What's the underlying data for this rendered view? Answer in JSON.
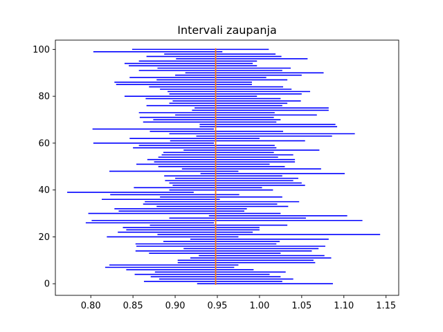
{
  "chart_data": {
    "type": "errorbar-horizontal",
    "title": "Intervali zaupanja",
    "xlabel": "",
    "ylabel": "",
    "xlim": [
      0.758,
      1.165
    ],
    "ylim": [
      -4.95,
      103.95
    ],
    "xticks": [
      0.8,
      0.85,
      0.9,
      0.95,
      1.0,
      1.05,
      1.1,
      1.15
    ],
    "xtick_labels": [
      "0.80",
      "0.85",
      "0.90",
      "0.95",
      "1.00",
      "1.05",
      "1.10",
      "1.15"
    ],
    "yticks": [
      0,
      20,
      40,
      60,
      80,
      100
    ],
    "ytick_labels": [
      "0",
      "20",
      "40",
      "60",
      "80",
      "100"
    ],
    "reference_line": {
      "x": 0.948,
      "color": "#ff7f0e"
    },
    "interval_color": "#0000ff",
    "grid": false,
    "legend": "none",
    "intervals": [
      [
        0.926,
        1.087
      ],
      [
        0.863,
        1.027
      ],
      [
        0.881,
        1.04
      ],
      [
        0.871,
        1.025
      ],
      [
        0.852,
        1.012
      ],
      [
        0.876,
        1.031
      ],
      [
        0.842,
        0.993
      ],
      [
        0.817,
        0.97
      ],
      [
        0.822,
        0.975
      ],
      [
        0.903,
        1.066
      ],
      [
        0.903,
        1.064
      ],
      [
        0.918,
        1.085
      ],
      [
        0.928,
        1.077
      ],
      [
        0.869,
        1.025
      ],
      [
        0.853,
        1.062
      ],
      [
        0.91,
        1.07
      ],
      [
        0.854,
        1.078
      ],
      [
        0.853,
        1.02
      ],
      [
        0.886,
        1.024
      ],
      [
        0.918,
        1.082
      ],
      [
        0.819,
        0.975
      ],
      [
        0.879,
        1.143
      ],
      [
        0.832,
        0.992
      ],
      [
        0.842,
        1.0
      ],
      [
        0.838,
        1.0
      ],
      [
        0.87,
        1.033
      ],
      [
        0.794,
        0.946
      ],
      [
        0.801,
        1.122
      ],
      [
        0.893,
        1.055
      ],
      [
        0.94,
        1.104
      ],
      [
        0.797,
        1.025
      ],
      [
        0.833,
        0.982
      ],
      [
        0.828,
        0.985
      ],
      [
        0.878,
        1.034
      ],
      [
        0.862,
        1.021
      ],
      [
        0.864,
        1.047
      ],
      [
        0.813,
        0.953
      ],
      [
        0.882,
        1.027
      ],
      [
        0.823,
        0.976
      ],
      [
        0.772,
        0.922
      ],
      [
        0.893,
        1.016
      ],
      [
        0.851,
        1.003
      ],
      [
        0.897,
        1.054
      ],
      [
        0.893,
        1.05
      ],
      [
        0.888,
        1.04
      ],
      [
        0.9,
        1.046
      ],
      [
        0.887,
        1.027
      ],
      [
        0.93,
        1.101
      ],
      [
        0.822,
        0.975
      ],
      [
        0.908,
        1.073
      ],
      [
        0.88,
        1.03
      ],
      [
        0.854,
        1.012
      ],
      [
        0.875,
        1.042
      ],
      [
        0.867,
        1.042
      ],
      [
        0.88,
        1.022
      ],
      [
        0.884,
        1.04
      ],
      [
        0.886,
        1.017
      ],
      [
        0.91,
        1.071
      ],
      [
        0.85,
        1.02
      ],
      [
        0.857,
        1.018
      ],
      [
        0.803,
        0.946
      ],
      [
        0.894,
        1.054
      ],
      [
        0.846,
        1.0
      ],
      [
        0.925,
        1.086
      ],
      [
        0.893,
        1.113
      ],
      [
        0.87,
        1.028
      ],
      [
        0.802,
        0.946
      ],
      [
        0.929,
        1.092
      ],
      [
        0.929,
        1.09
      ],
      [
        0.862,
        1.02
      ],
      [
        0.874,
        1.025
      ],
      [
        0.858,
        1.017
      ],
      [
        0.9,
        1.068
      ],
      [
        0.857,
        1.018
      ],
      [
        0.92,
        1.082
      ],
      [
        0.923,
        1.082
      ],
      [
        0.866,
        1.027
      ],
      [
        0.893,
        1.033
      ],
      [
        0.897,
        1.049
      ],
      [
        0.865,
        1.025
      ],
      [
        0.84,
        0.997
      ],
      [
        0.893,
        1.05
      ],
      [
        0.891,
        1.06
      ],
      [
        0.882,
        1.038
      ],
      [
        0.869,
        1.028
      ],
      [
        0.83,
        0.991
      ],
      [
        0.828,
        0.991
      ],
      [
        0.878,
        1.033
      ],
      [
        0.846,
        1.008
      ],
      [
        0.9,
        1.05
      ],
      [
        0.912,
        1.076
      ],
      [
        0.857,
        1.027
      ],
      [
        0.879,
        1.037
      ],
      [
        0.845,
        0.997
      ],
      [
        0.84,
        0.992
      ],
      [
        0.857,
        0.997
      ],
      [
        0.901,
        1.057
      ],
      [
        0.866,
        1.026
      ],
      [
        0.887,
        1.019
      ],
      [
        0.803,
        0.956
      ],
      [
        0.849,
        1.011
      ]
    ]
  }
}
